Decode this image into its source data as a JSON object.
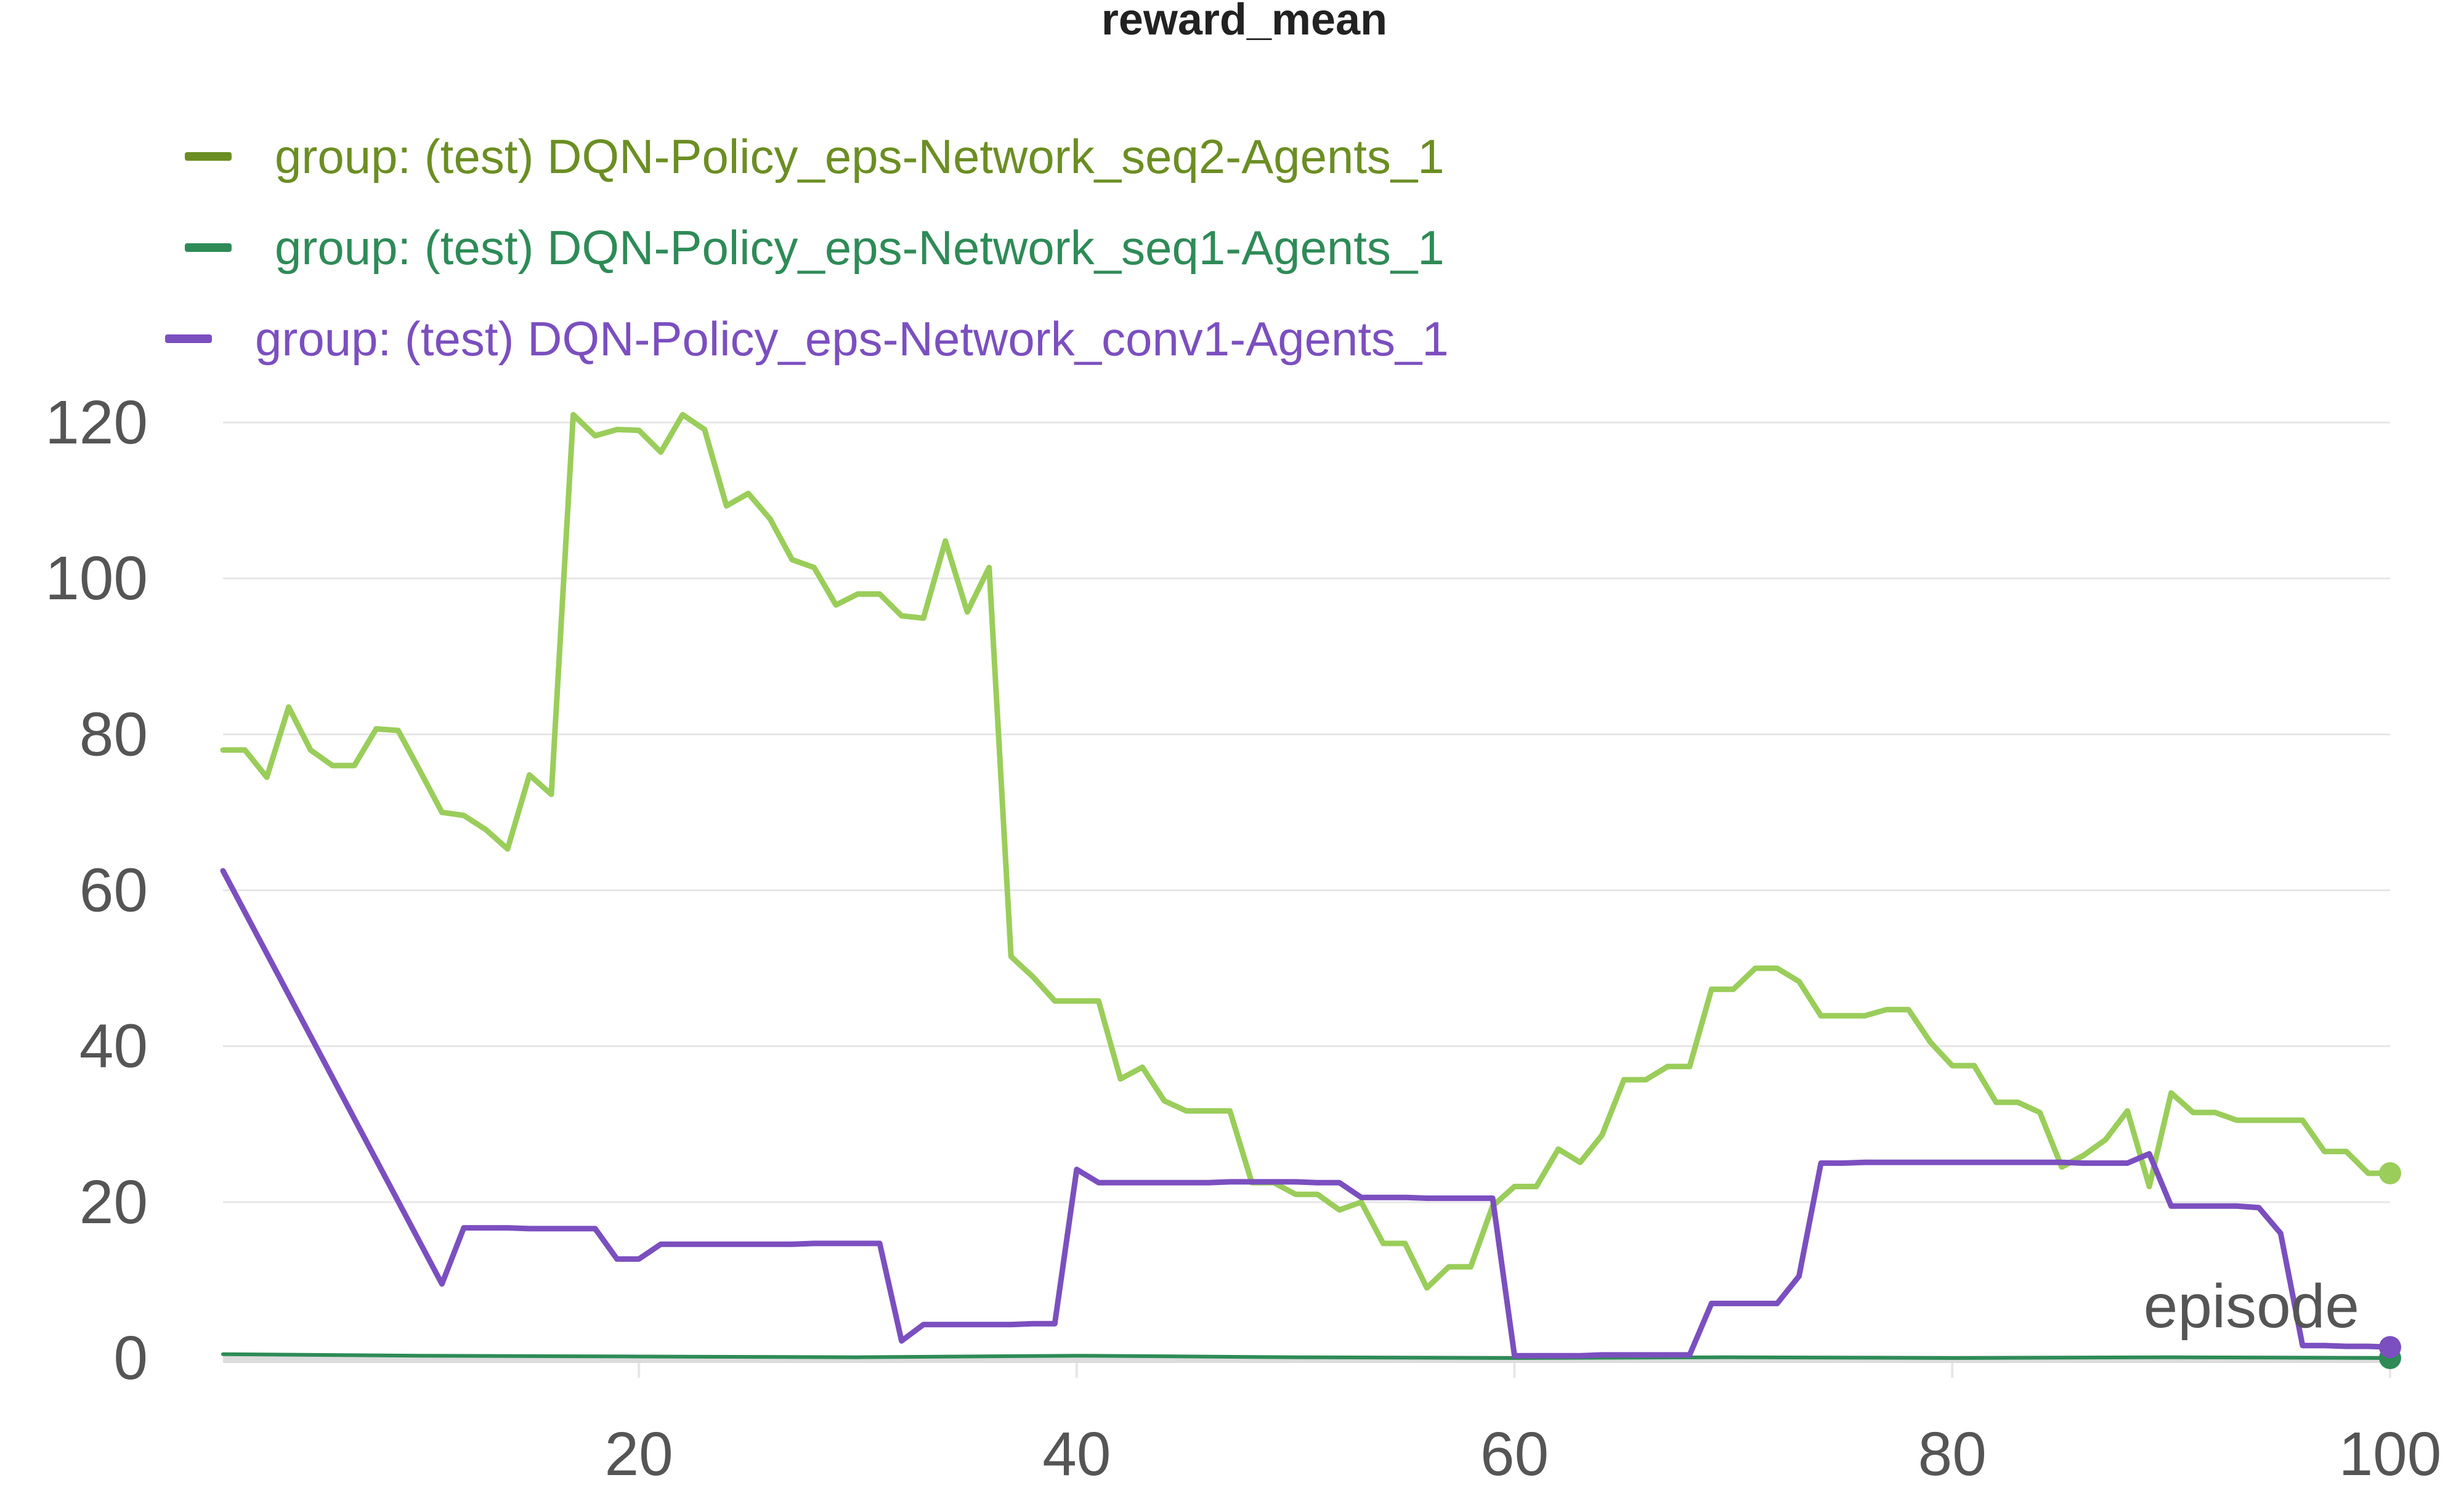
{
  "chart_data": {
    "type": "line",
    "title": "reward_mean",
    "xlabel": "episode",
    "ylabel": "",
    "xlim": [
      1,
      100
    ],
    "ylim": [
      0,
      125
    ],
    "x_ticks": [
      20,
      40,
      60,
      80,
      100
    ],
    "y_ticks": [
      0,
      20,
      40,
      60,
      80,
      100,
      120
    ],
    "grid": true,
    "legend_position": "top-left",
    "series": [
      {
        "name": "group: (test) DQN-Policy_eps-Network_seq2-Agents_1",
        "legend_color": "#6b8e23",
        "line_color": "#9acd5a",
        "x": [
          1,
          2,
          3,
          4,
          5,
          6,
          7,
          8,
          9,
          10,
          11,
          12,
          13,
          14,
          15,
          16,
          17,
          18,
          19,
          20,
          21,
          22,
          23,
          24,
          25,
          26,
          27,
          28,
          29,
          30,
          31,
          32,
          33,
          34,
          35,
          36,
          37,
          38,
          39,
          40,
          41,
          42,
          43,
          44,
          45,
          46,
          47,
          48,
          49,
          50,
          51,
          52,
          53,
          54,
          55,
          56,
          57,
          58,
          59,
          60,
          61,
          62,
          63,
          64,
          65,
          66,
          67,
          68,
          69,
          70,
          71,
          72,
          73,
          74,
          75,
          76,
          77,
          78,
          79,
          80,
          81,
          82,
          83,
          84,
          85,
          86,
          87,
          88,
          89,
          90,
          91,
          92,
          93,
          94,
          95,
          96,
          97,
          98,
          99,
          100
        ],
        "y": [
          78,
          78,
          74.5,
          83.5,
          78,
          76,
          76,
          80.7,
          80.5,
          75.3,
          70,
          69.6,
          67.8,
          65.3,
          74.8,
          72.3,
          121,
          118.3,
          119.1,
          119,
          116.2,
          121,
          119.1,
          109.3,
          110.9,
          107.6,
          102.4,
          101.4,
          96.6,
          98,
          98,
          95.2,
          94.9,
          104.8,
          95.7,
          101.4,
          51.5,
          48.9,
          45.8,
          45.8,
          45.8,
          35.8,
          37.3,
          33,
          31.7,
          31.7,
          31.7,
          22.5,
          22.5,
          21,
          21,
          19,
          20,
          14.7,
          14.7,
          9,
          11.7,
          11.7,
          19.5,
          22,
          22,
          26.8,
          25.1,
          28.6,
          35.7,
          35.7,
          37.4,
          37.4,
          47.3,
          47.3,
          50,
          50,
          48.3,
          43.9,
          43.9,
          43.9,
          44.7,
          44.7,
          40.5,
          37.5,
          37.5,
          32.8,
          32.8,
          31.5,
          24.5,
          26,
          28,
          31.7,
          22,
          34,
          31.5,
          31.5,
          30.5,
          30.5,
          30.5,
          30.5,
          26.5,
          26.5,
          23.7,
          23.7
        ]
      },
      {
        "name": "group: (test) DQN-Policy_eps-Network_seq1-Agents_1",
        "legend_color": "#2e8b57",
        "line_color": "#2e8b57",
        "x": [
          1,
          10,
          20,
          30,
          40,
          50,
          60,
          70,
          80,
          90,
          100
        ],
        "y": [
          0.5,
          0.3,
          0.2,
          0.1,
          0.3,
          0.1,
          0,
          0.1,
          0,
          0.1,
          0
        ]
      },
      {
        "name": "group: (test) DQN-Policy_eps-Network_conv1-Agents_1",
        "legend_color": "#7b4fbf",
        "line_color": "#7b4fbf",
        "x": [
          1,
          11,
          12,
          13,
          14,
          15,
          16,
          17,
          18,
          19,
          20,
          21,
          22,
          23,
          24,
          25,
          26,
          27,
          28,
          29,
          30,
          31,
          32,
          33,
          34,
          35,
          36,
          37,
          38,
          39,
          40,
          41,
          42,
          43,
          44,
          45,
          46,
          47,
          48,
          49,
          50,
          51,
          52,
          53,
          54,
          55,
          56,
          57,
          58,
          59,
          60,
          61,
          62,
          63,
          64,
          65,
          66,
          67,
          68,
          69,
          70,
          71,
          72,
          73,
          74,
          75,
          76,
          77,
          78,
          79,
          80,
          81,
          82,
          83,
          84,
          85,
          86,
          87,
          88,
          89,
          90,
          91,
          92,
          93,
          94,
          95,
          96,
          97,
          98,
          99,
          100
        ],
        "y": [
          62.5,
          9.5,
          16.7,
          16.7,
          16.7,
          16.6,
          16.6,
          16.6,
          16.6,
          12.7,
          12.7,
          14.6,
          14.6,
          14.6,
          14.6,
          14.6,
          14.6,
          14.6,
          14.7,
          14.7,
          14.7,
          14.7,
          2.2,
          4.3,
          4.3,
          4.3,
          4.3,
          4.3,
          4.4,
          4.4,
          24.2,
          22.5,
          22.5,
          22.5,
          22.5,
          22.5,
          22.5,
          22.6,
          22.6,
          22.6,
          22.6,
          22.5,
          22.5,
          20.6,
          20.6,
          20.6,
          20.5,
          20.5,
          20.5,
          20.5,
          0.3,
          0.3,
          0.3,
          0.3,
          0.4,
          0.4,
          0.4,
          0.4,
          0.4,
          7,
          7,
          7,
          7,
          10.5,
          25,
          25,
          25.1,
          25.1,
          25.1,
          25.1,
          25.1,
          25.1,
          25.1,
          25.1,
          25.1,
          25.1,
          25,
          25,
          25,
          26.2,
          19.5,
          19.5,
          19.5,
          19.5,
          19.3,
          16,
          1.6,
          1.6,
          1.5,
          1.5,
          1.4
        ]
      }
    ]
  }
}
